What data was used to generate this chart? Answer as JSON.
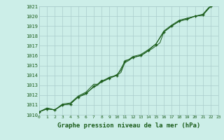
{
  "title": "Graphe pression niveau de la mer (hPa)",
  "xlim": [
    0,
    23
  ],
  "ylim": [
    1010,
    1021
  ],
  "xticks": [
    0,
    1,
    2,
    3,
    4,
    5,
    6,
    7,
    8,
    9,
    10,
    11,
    12,
    13,
    14,
    15,
    16,
    17,
    18,
    19,
    20,
    21,
    22,
    23
  ],
  "yticks": [
    1010,
    1011,
    1012,
    1013,
    1014,
    1015,
    1016,
    1017,
    1018,
    1019,
    1020,
    1021
  ],
  "background_color": "#cceee8",
  "grid_color": "#aacccc",
  "line_color": "#1a5c1a",
  "marker_color": "#1a5c1a",
  "series1_x": [
    0,
    1,
    2,
    3,
    4,
    5,
    6,
    7,
    7.5,
    8,
    8.5,
    9,
    9.5,
    10,
    10.5,
    11,
    11.5,
    12,
    12.5,
    13,
    13.5,
    14,
    14.5,
    15,
    15.5,
    16,
    17,
    18,
    19,
    20,
    21,
    22,
    23
  ],
  "series1_y": [
    1010.3,
    1010.6,
    1010.5,
    1011.0,
    1011.1,
    1011.8,
    1012.2,
    1012.8,
    1013.0,
    1013.4,
    1013.6,
    1013.8,
    1013.9,
    1014.0,
    1014.3,
    1015.3,
    1015.5,
    1015.8,
    1015.9,
    1016.0,
    1016.2,
    1016.5,
    1016.7,
    1017.0,
    1017.3,
    1018.4,
    1019.0,
    1019.5,
    1019.7,
    1020.0,
    1020.1,
    1021.0,
    1021.2
  ],
  "series2_x": [
    0,
    1,
    2,
    3,
    4,
    5,
    6,
    7,
    7.5,
    8,
    8.5,
    9,
    9.5,
    10,
    10.5,
    11,
    11.5,
    12,
    12.5,
    13,
    14,
    15,
    16,
    17,
    18,
    19,
    20,
    21,
    22,
    23
  ],
  "series2_y": [
    1010.3,
    1010.7,
    1010.5,
    1011.1,
    1011.2,
    1011.9,
    1012.3,
    1013.1,
    1013.1,
    1013.5,
    1013.5,
    1013.8,
    1013.9,
    1014.1,
    1014.5,
    1015.5,
    1015.6,
    1015.9,
    1016.0,
    1016.1,
    1016.6,
    1017.2,
    1018.5,
    1019.1,
    1019.6,
    1019.8,
    1020.0,
    1020.2,
    1021.1,
    1021.3
  ],
  "series3_x": [
    0,
    1,
    2,
    3,
    4,
    5,
    6,
    7,
    8,
    9,
    10,
    11,
    12,
    13,
    14,
    15,
    16,
    17,
    18,
    19,
    20,
    21,
    22,
    23
  ],
  "series3_y": [
    1010.3,
    1010.6,
    1010.5,
    1011.0,
    1011.1,
    1011.8,
    1012.1,
    1012.9,
    1013.3,
    1013.7,
    1014.0,
    1015.4,
    1015.8,
    1016.0,
    1016.5,
    1017.2,
    1018.4,
    1019.0,
    1019.5,
    1019.7,
    1020.0,
    1020.1,
    1021.0,
    1021.2
  ],
  "marker_x": [
    0,
    1,
    2,
    3,
    4,
    5,
    6,
    7,
    8,
    9,
    10,
    11,
    12,
    13,
    14,
    15,
    16,
    17,
    18,
    19,
    20,
    21,
    22,
    23
  ],
  "marker_y": [
    1010.3,
    1010.6,
    1010.5,
    1011.0,
    1011.1,
    1011.8,
    1012.2,
    1012.9,
    1013.4,
    1013.7,
    1014.0,
    1015.4,
    1015.8,
    1016.0,
    1016.5,
    1017.1,
    1018.4,
    1019.0,
    1019.5,
    1019.7,
    1020.0,
    1020.15,
    1021.0,
    1021.2
  ],
  "ylabel_fontsize": 5.5,
  "xlabel_fontsize": 5.0,
  "title_fontsize": 6.5
}
